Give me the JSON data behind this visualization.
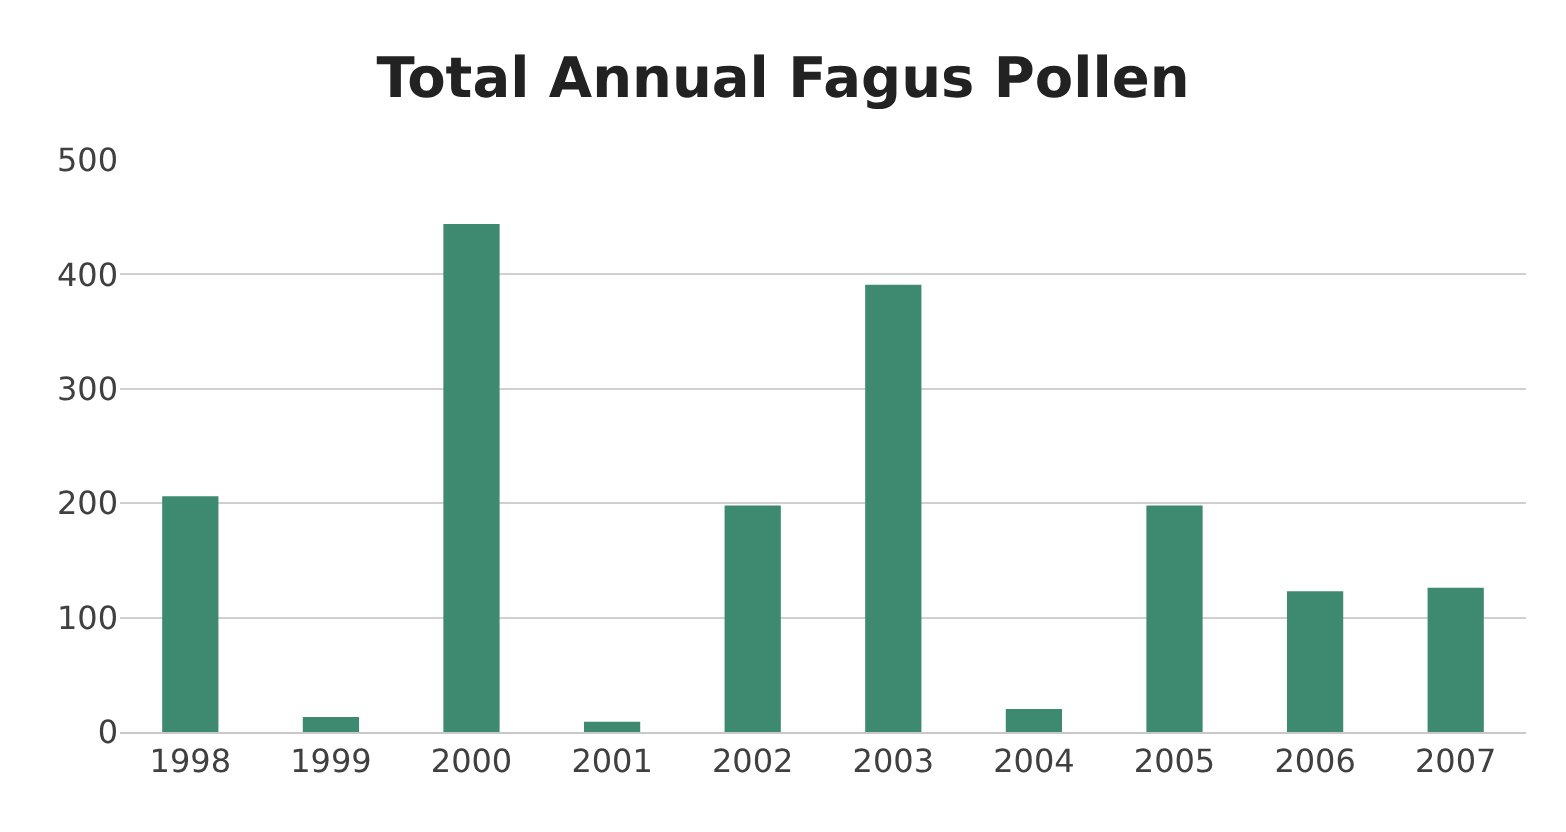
{
  "chart_data": {
    "type": "bar",
    "title": "Total Annual Fagus Pollen",
    "categories": [
      "1998",
      "1999",
      "2000",
      "2001",
      "2002",
      "2003",
      "2004",
      "2005",
      "2006",
      "2007"
    ],
    "values": [
      206,
      13,
      444,
      9,
      198,
      391,
      20,
      198,
      123,
      126
    ],
    "color": "#3e8a70",
    "ylim": [
      0,
      500
    ],
    "yticks": [
      0,
      100,
      200,
      300,
      400,
      500
    ],
    "grid": "y"
  }
}
